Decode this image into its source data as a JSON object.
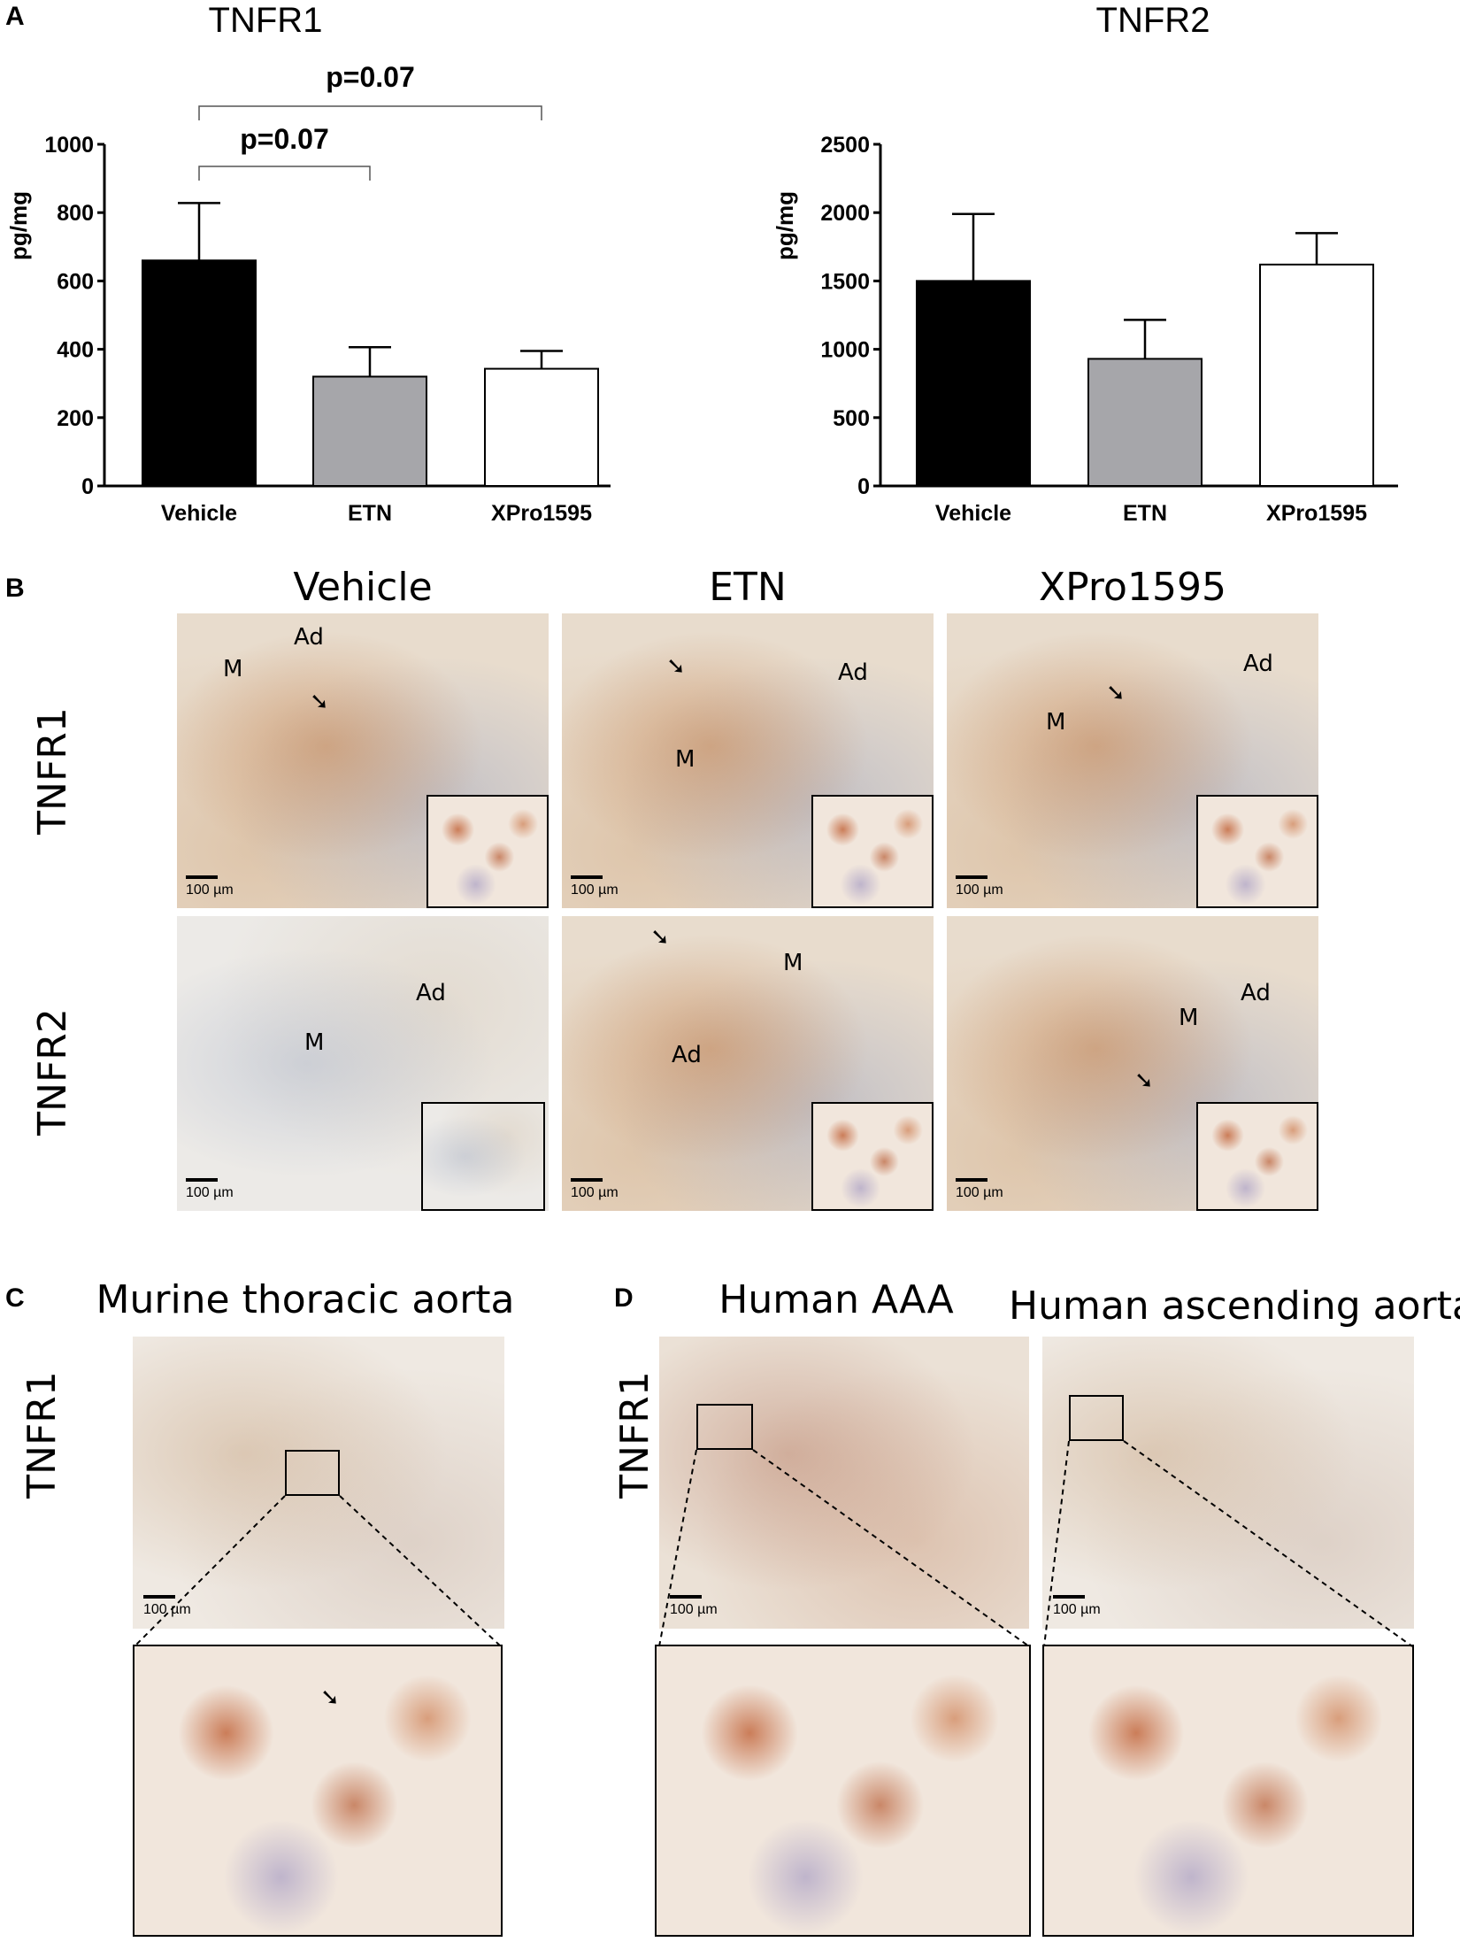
{
  "panels": {
    "a": "A",
    "b": "B",
    "c": "C",
    "d": "D"
  },
  "chart_data": [
    {
      "type": "bar",
      "title": "TNFR1",
      "ylabel": "pg/mg",
      "xlabel": "",
      "categories": [
        "Vehicle",
        "ETN",
        "XPro1595"
      ],
      "values": [
        660,
        320,
        343
      ],
      "errors": [
        168,
        86,
        52
      ],
      "bar_colors": [
        "#000000",
        "#a6a6aa",
        "#ffffff"
      ],
      "ylim": [
        0,
        1000
      ],
      "yticks": [
        0,
        200,
        400,
        600,
        800,
        1000
      ],
      "ytick_labels": [
        "0",
        "200",
        "400",
        "600",
        "800",
        "1000"
      ],
      "annotations": [
        {
          "label": "p=0.07",
          "from": "Vehicle",
          "to": "ETN"
        },
        {
          "label": "p=0.07",
          "from": "Vehicle",
          "to": "XPro1595"
        }
      ],
      "grid": false
    },
    {
      "type": "bar",
      "title": "TNFR2",
      "ylabel": "pg/mg",
      "xlabel": "",
      "categories": [
        "Vehicle",
        "ETN",
        "XPro1595"
      ],
      "values": [
        1500,
        930,
        1620
      ],
      "errors": [
        490,
        285,
        230
      ],
      "bar_colors": [
        "#000000",
        "#a6a6aa",
        "#ffffff"
      ],
      "ylim": [
        0,
        2500
      ],
      "yticks": [
        0,
        500,
        1000,
        1500,
        2000,
        2500
      ],
      "ytick_labels": [
        "0",
        "500",
        "1000",
        "1500",
        "2000",
        "2500"
      ],
      "annotations": [],
      "grid": false
    }
  ],
  "panel_b": {
    "columns": [
      "Vehicle",
      "ETN",
      "XPro1595"
    ],
    "rows": [
      "TNFR1",
      "TNFR2"
    ],
    "labels": {
      "r1c1": [
        "Ad",
        "M"
      ],
      "r1c2": [
        "Ad",
        "M"
      ],
      "r1c3": [
        "Ad",
        "M"
      ],
      "r2c1": [
        "Ad",
        "M"
      ],
      "r2c2": [
        "M",
        "Ad"
      ],
      "r2c3": [
        "Ad",
        "M"
      ]
    },
    "scale": "100 µm"
  },
  "panel_c": {
    "title": "Murine thoracic aorta",
    "row": "TNFR1",
    "scale": "100 µm"
  },
  "panel_d": {
    "titles": [
      "Human AAA",
      "Human ascending aorta"
    ],
    "row": "TNFR1",
    "scale": "100 µm"
  },
  "arrow_glyph": "➘"
}
